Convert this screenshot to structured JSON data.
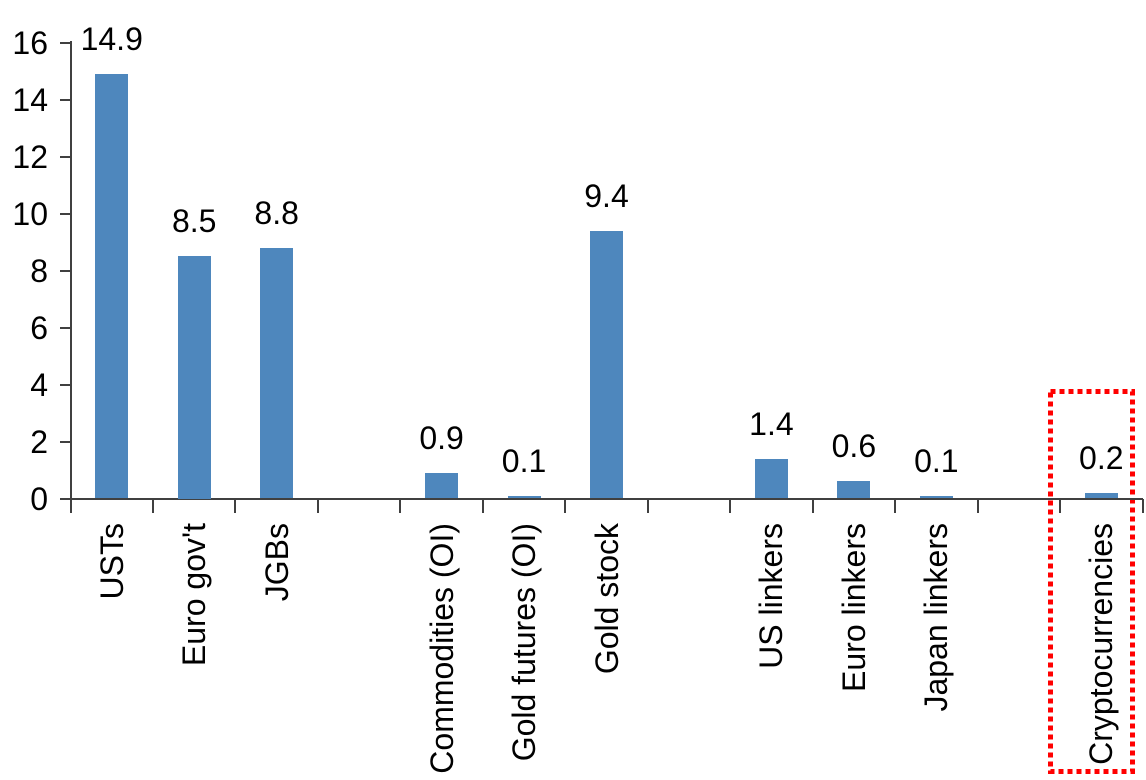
{
  "chart_data": {
    "type": "bar",
    "title": "",
    "xlabel": "",
    "ylabel": "",
    "categories": [
      "USTs",
      "Euro gov't",
      "JGBs",
      "Commodities (OI)",
      "Gold futures (OI)",
      "Gold stock",
      "US linkers",
      "Euro linkers",
      "Japan linkers",
      "Cryptocurrencies"
    ],
    "values": [
      14.9,
      8.5,
      8.8,
      0.9,
      0.1,
      9.4,
      1.4,
      0.6,
      0.1,
      0.2
    ],
    "value_label_decimals": 1,
    "slots": [
      1,
      2,
      3,
      5,
      6,
      7,
      9,
      10,
      11,
      13
    ],
    "total_slots": 13,
    "ylim": [
      0,
      16
    ],
    "yticks": [
      0,
      2,
      4,
      6,
      8,
      10,
      12,
      14,
      16
    ],
    "grid": false,
    "legend": false,
    "bar_color": "#4e87bd",
    "axis_color": "#404040",
    "text_color": "#000000",
    "highlight": {
      "category": "Cryptocurrencies",
      "style": "red-dotted-box",
      "color": "#ff0000"
    }
  }
}
